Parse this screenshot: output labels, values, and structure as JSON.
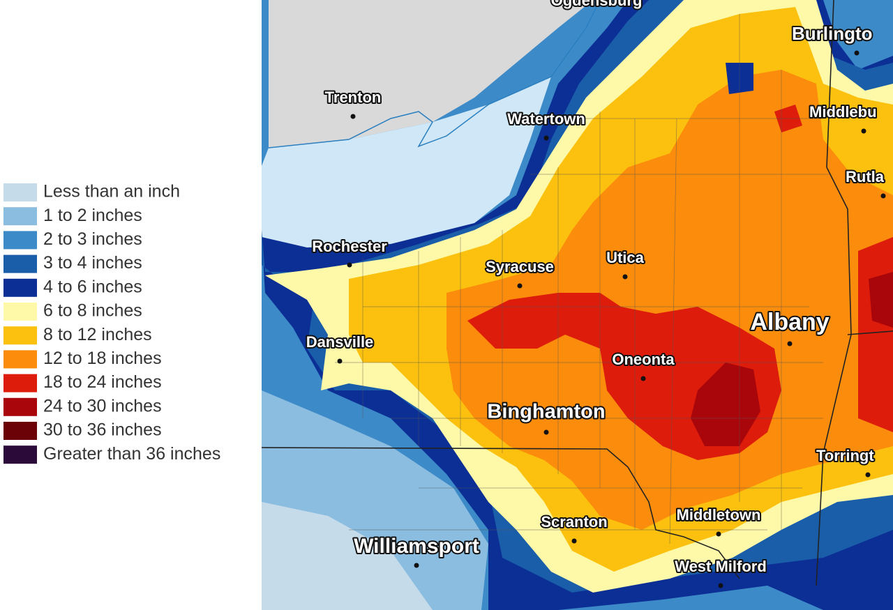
{
  "legend": {
    "items": [
      {
        "label": "Less than an inch",
        "color": "#c5dbea"
      },
      {
        "label": "1 to 2 inches",
        "color": "#8bbde0"
      },
      {
        "label": "2 to 3 inches",
        "color": "#3d8ac8"
      },
      {
        "label": "3 to 4 inches",
        "color": "#1a5eaa"
      },
      {
        "label": "4 to 6 inches",
        "color": "#0c2f95"
      },
      {
        "label": "6 to 8 inches",
        "color": "#fef9a8"
      },
      {
        "label": "8 to 12 inches",
        "color": "#fcc10e"
      },
      {
        "label": "12 to 18 inches",
        "color": "#fb8c0c"
      },
      {
        "label": "18 to 24 inches",
        "color": "#dd1c0c"
      },
      {
        "label": "24 to 30 inches",
        "color": "#a8060a"
      },
      {
        "label": "30 to 36 inches",
        "color": "#6b0208"
      },
      {
        "label": "Greater than 36 inches",
        "color": "#2b0a3a"
      }
    ]
  },
  "cities": [
    "Ogdensburg",
    "Burlingto",
    "Trenton",
    "Watertown",
    "Middlebu",
    "Rutla",
    "Rochester",
    "Syracuse",
    "Utica",
    "Albany",
    "Dansville",
    "Oneonta",
    "Binghamton",
    "Torringt",
    "Middletown",
    "Scranton",
    "Williamsport",
    "West Milford"
  ]
}
